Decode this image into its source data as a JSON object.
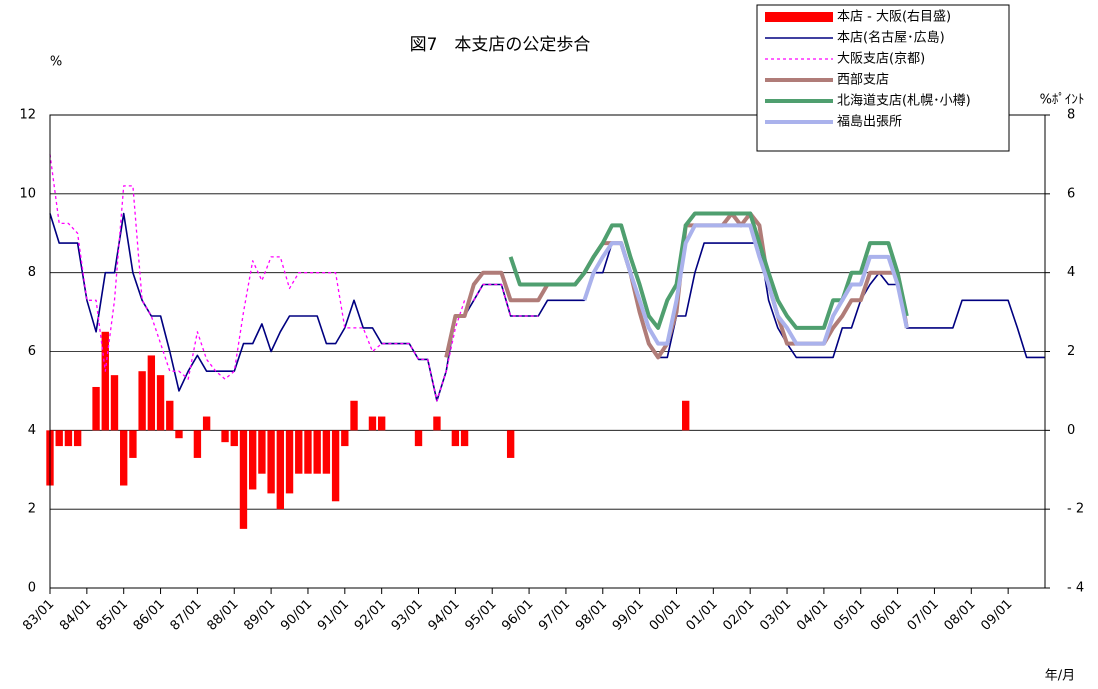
{
  "chart_data": {
    "type": "line",
    "title": "図7　本支店の公定歩合",
    "ylabel": "%",
    "y2label": "%ﾎﾟｲﾝﾄ",
    "xlabel": "年/月",
    "xlim": [
      1983,
      2010
    ],
    "ylim": [
      0,
      12
    ],
    "y2lim": [
      -4,
      8
    ],
    "yticks": [
      0,
      2,
      4,
      6,
      8,
      10,
      12
    ],
    "y2ticks": [
      {
        "value": -4,
        "label": "- 4"
      },
      {
        "value": -2,
        "label": "- 2"
      },
      0,
      2,
      4,
      6,
      8
    ],
    "xticks": [
      {
        "value": 1983,
        "label": "83/01"
      },
      {
        "value": 1984,
        "label": "84/01"
      },
      {
        "value": 1985,
        "label": "85/01"
      },
      {
        "value": 1986,
        "label": "86/01"
      },
      {
        "value": 1987,
        "label": "87/01"
      },
      {
        "value": 1988,
        "label": "88/01"
      },
      {
        "value": 1989,
        "label": "89/01"
      },
      {
        "value": 1990,
        "label": "90/01"
      },
      {
        "value": 1991,
        "label": "91/01"
      },
      {
        "value": 1992,
        "label": "92/01"
      },
      {
        "value": 1993,
        "label": "93/01"
      },
      {
        "value": 1994,
        "label": "94/01"
      },
      {
        "value": 1995,
        "label": "95/01"
      },
      {
        "value": 1996,
        "label": "96/01"
      },
      {
        "value": 1997,
        "label": "97/01"
      },
      {
        "value": 1998,
        "label": "98/01"
      },
      {
        "value": 1999,
        "label": "99/01"
      },
      {
        "value": 2000,
        "label": "00/01"
      },
      {
        "value": 2001,
        "label": "01/01"
      },
      {
        "value": 2002,
        "label": "02/01"
      },
      {
        "value": 2003,
        "label": "03/01"
      },
      {
        "value": 2004,
        "label": "04/01"
      },
      {
        "value": 2005,
        "label": "05/01"
      },
      {
        "value": 2006,
        "label": "06/01"
      },
      {
        "value": 2007,
        "label": "07/01"
      },
      {
        "value": 2008,
        "label": "08/01"
      },
      {
        "value": 2009,
        "label": "09/01"
      }
    ],
    "grid": true,
    "legend": "upper right",
    "x": [
      1983,
      1983.25,
      1983.5,
      1983.75,
      1984,
      1984.25,
      1984.5,
      1984.75,
      1985,
      1985.25,
      1985.5,
      1985.75,
      1986,
      1986.25,
      1986.5,
      1986.75,
      1987,
      1987.25,
      1987.5,
      1987.75,
      1988,
      1988.25,
      1988.5,
      1988.75,
      1989,
      1989.25,
      1989.5,
      1989.75,
      1990,
      1990.25,
      1990.5,
      1990.75,
      1991,
      1991.25,
      1991.5,
      1991.75,
      1992,
      1992.25,
      1992.5,
      1992.75,
      1993,
      1993.25,
      1993.5,
      1993.75,
      1994,
      1994.25,
      1994.5,
      1994.75,
      1995,
      1995.25,
      1995.5,
      1995.75,
      1996,
      1996.25,
      1996.5,
      1996.75,
      1997,
      1997.25,
      1997.5,
      1997.75,
      1998,
      1998.25,
      1998.5,
      1998.75,
      1999,
      1999.25,
      1999.5,
      1999.75,
      2000,
      2000.25,
      2000.5,
      2000.75,
      2001,
      2001.25,
      2001.5,
      2001.75,
      2002,
      2002.25,
      2002.5,
      2002.75,
      2003,
      2003.25,
      2003.5,
      2003.75,
      2004,
      2004.25,
      2004.5,
      2004.75,
      2005,
      2005.25,
      2005.5,
      2005.75,
      2006,
      2006.25,
      2006.5,
      2006.75,
      2007,
      2007.25,
      2007.5,
      2007.75,
      2008,
      2008.25,
      2008.5,
      2008.75,
      2009,
      2009.25,
      2009.5,
      2009.75,
      2010
    ],
    "series": [
      {
        "name": "本店 - 大阪(右目盛)",
        "type": "bar",
        "axis": "y2",
        "color": "#ff0000",
        "values": [
          -1.4,
          -0.4,
          -0.4,
          -0.4,
          0,
          1.1,
          2.5,
          1.4,
          -1.4,
          -0.7,
          1.5,
          1.9,
          1.4,
          0.75,
          -0.2,
          0,
          -0.7,
          0.35,
          0,
          -0.3,
          -0.4,
          -2.5,
          -1.5,
          -1.1,
          -1.6,
          -2.0,
          -1.6,
          -1.1,
          -1.1,
          -1.1,
          -1.1,
          -1.8,
          -0.4,
          0.75,
          0,
          0.35,
          0.35,
          0,
          0,
          0,
          -0.4,
          0,
          0.35,
          0,
          -0.4,
          -0.4,
          0,
          0,
          0,
          0,
          -0.7,
          0,
          0,
          0,
          0,
          0,
          0,
          0,
          0,
          0,
          0,
          0,
          0,
          0,
          0,
          0,
          0,
          0,
          0,
          0.75,
          0,
          0,
          0,
          0,
          0,
          0,
          0,
          0,
          0,
          0,
          0,
          0,
          0,
          0,
          0,
          0,
          0,
          0,
          0,
          0,
          0,
          0,
          0,
          0,
          null,
          null,
          null,
          null,
          null,
          null,
          null,
          null,
          null,
          null,
          null,
          null,
          null,
          null,
          null
        ]
      },
      {
        "name": "本店(名古屋･広島)",
        "color": "#000080",
        "values": [
          9.5,
          8.75,
          8.75,
          8.75,
          7.3,
          6.5,
          8.0,
          8.0,
          9.5,
          8.0,
          7.3,
          6.9,
          6.9,
          6.0,
          5.0,
          5.5,
          5.9,
          5.5,
          5.5,
          5.5,
          5.5,
          6.2,
          6.2,
          6.7,
          6.0,
          6.5,
          6.9,
          6.9,
          6.9,
          6.9,
          6.2,
          6.2,
          6.6,
          7.3,
          6.6,
          6.6,
          6.2,
          6.2,
          6.2,
          6.2,
          5.8,
          5.8,
          4.75,
          5.5,
          6.9,
          6.9,
          7.3,
          7.7,
          7.7,
          7.7,
          6.9,
          6.9,
          6.9,
          6.9,
          7.3,
          7.3,
          7.3,
          7.3,
          7.3,
          8.0,
          8.0,
          8.75,
          8.75,
          8.0,
          7.0,
          6.2,
          5.85,
          5.85,
          6.9,
          6.9,
          8.0,
          8.75,
          8.75,
          8.75,
          8.75,
          8.75,
          8.75,
          8.75,
          7.3,
          6.6,
          6.2,
          5.85,
          5.85,
          5.85,
          5.85,
          5.85,
          6.6,
          6.6,
          7.3,
          7.7,
          8.0,
          7.7,
          7.7,
          6.6,
          6.6,
          6.6,
          6.6,
          6.6,
          6.6,
          7.3,
          7.3,
          7.3,
          7.3,
          7.3,
          7.3,
          6.6,
          5.85,
          5.85,
          5.85
        ]
      },
      {
        "name": "大阪支店(京都)",
        "color": "#ff00ff",
        "dashed": true,
        "values": [
          11.0,
          9.25,
          9.25,
          9.0,
          7.3,
          7.3,
          5.5,
          7.3,
          10.2,
          10.2,
          7.3,
          6.9,
          6.2,
          5.5,
          5.5,
          5.3,
          6.5,
          5.8,
          5.5,
          5.3,
          5.5,
          7.0,
          8.3,
          7.8,
          8.4,
          8.4,
          7.6,
          8.0,
          8.0,
          8.0,
          8.0,
          8.0,
          6.6,
          6.6,
          6.6,
          6.0,
          6.2,
          6.2,
          6.2,
          6.2,
          5.8,
          5.8,
          4.75,
          5.5,
          6.6,
          7.3,
          7.3,
          7.7,
          7.7,
          7.7,
          6.9,
          6.9,
          6.9,
          6.9,
          null,
          null,
          null,
          null,
          null,
          null,
          null,
          null,
          null,
          null,
          null,
          null,
          null,
          null,
          null,
          null,
          null,
          null,
          null,
          null,
          null,
          null,
          null,
          null,
          null,
          null,
          null,
          null,
          null,
          null,
          null,
          null,
          null,
          null,
          null,
          null,
          null,
          null,
          null,
          null,
          null,
          null,
          null,
          null,
          null,
          null,
          null,
          null,
          null,
          null,
          null,
          null,
          null,
          null,
          null
        ]
      },
      {
        "name": "西部支店",
        "color": "#b07c78",
        "values": [
          null,
          null,
          null,
          null,
          null,
          null,
          null,
          null,
          null,
          null,
          null,
          null,
          null,
          null,
          null,
          null,
          null,
          null,
          null,
          null,
          null,
          null,
          null,
          null,
          null,
          null,
          null,
          null,
          null,
          null,
          null,
          null,
          null,
          null,
          null,
          null,
          null,
          null,
          null,
          null,
          null,
          null,
          null,
          5.85,
          6.9,
          6.9,
          7.7,
          8.0,
          8.0,
          8.0,
          7.3,
          7.3,
          7.3,
          7.3,
          7.7,
          7.7,
          7.7,
          7.7,
          8.0,
          8.4,
          8.75,
          8.75,
          8.75,
          8.0,
          7.0,
          6.2,
          5.85,
          6.2,
          7.0,
          9.2,
          9.2,
          9.2,
          9.2,
          9.2,
          9.5,
          9.2,
          9.5,
          9.2,
          7.7,
          6.9,
          6.2,
          6.2,
          6.2,
          6.2,
          6.2,
          6.6,
          6.9,
          7.3,
          7.3,
          8.0,
          8.0,
          8.0,
          8.0,
          6.6,
          null,
          null,
          null,
          null,
          null,
          null,
          null,
          null,
          null,
          null,
          null,
          null,
          null,
          null,
          null
        ]
      },
      {
        "name": "北海道支店(札幌･小樽)",
        "color": "#4f9f6f",
        "values": [
          null,
          null,
          null,
          null,
          null,
          null,
          null,
          null,
          null,
          null,
          null,
          null,
          null,
          null,
          null,
          null,
          null,
          null,
          null,
          null,
          null,
          null,
          null,
          null,
          null,
          null,
          null,
          null,
          null,
          null,
          null,
          null,
          null,
          null,
          null,
          null,
          null,
          null,
          null,
          null,
          null,
          null,
          null,
          null,
          null,
          null,
          null,
          null,
          null,
          null,
          8.4,
          7.7,
          7.7,
          7.7,
          7.7,
          7.7,
          7.7,
          7.7,
          8.0,
          8.4,
          8.75,
          9.2,
          9.2,
          8.4,
          7.7,
          6.9,
          6.6,
          7.3,
          7.7,
          9.2,
          9.5,
          9.5,
          9.5,
          9.5,
          9.5,
          9.5,
          9.5,
          8.75,
          8.0,
          7.3,
          6.9,
          6.6,
          6.6,
          6.6,
          6.6,
          7.3,
          7.3,
          8.0,
          8.0,
          8.75,
          8.75,
          8.75,
          8.0,
          6.9,
          null,
          null,
          null,
          null,
          null,
          null,
          null,
          null,
          null,
          null,
          null,
          null,
          null,
          null,
          null
        ]
      },
      {
        "name": "福島出張所",
        "color": "#aab2ec",
        "values": [
          null,
          null,
          null,
          null,
          null,
          null,
          null,
          null,
          null,
          null,
          null,
          null,
          null,
          null,
          null,
          null,
          null,
          null,
          null,
          null,
          null,
          null,
          null,
          null,
          null,
          null,
          null,
          null,
          null,
          null,
          null,
          null,
          null,
          null,
          null,
          null,
          null,
          null,
          null,
          null,
          null,
          null,
          null,
          null,
          null,
          null,
          null,
          null,
          null,
          null,
          null,
          null,
          null,
          null,
          null,
          null,
          null,
          null,
          7.3,
          8.0,
          8.4,
          8.75,
          8.75,
          8.0,
          7.3,
          6.6,
          6.2,
          6.2,
          7.3,
          8.75,
          9.2,
          9.2,
          9.2,
          9.2,
          9.2,
          9.2,
          9.2,
          8.4,
          7.7,
          6.9,
          6.6,
          6.2,
          6.2,
          6.2,
          6.2,
          6.9,
          7.3,
          7.7,
          7.7,
          8.4,
          8.4,
          8.4,
          7.7,
          6.6,
          null,
          null,
          null,
          null,
          null,
          null,
          null,
          null,
          null,
          null,
          null,
          null,
          null,
          null,
          null
        ]
      }
    ]
  }
}
